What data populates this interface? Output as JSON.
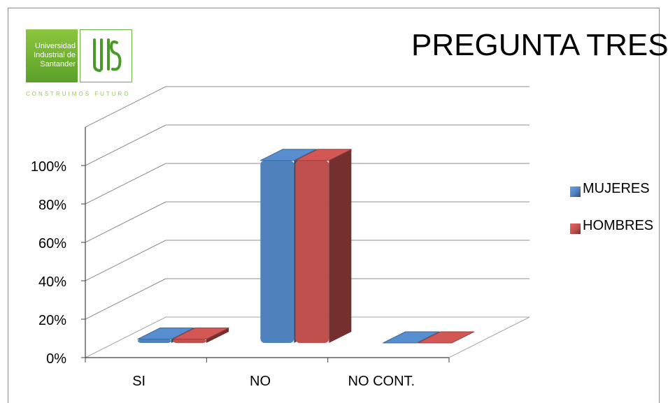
{
  "logo": {
    "name_lines": [
      "Universidad",
      "Industrial de",
      "Santander"
    ],
    "tagline": "CONSTRUIMOS FUTURO",
    "accent_color": "#6db33f"
  },
  "chart_data": {
    "type": "bar",
    "title": "PREGUNTA TRES",
    "categories": [
      "SI",
      "NO",
      "NO CONT."
    ],
    "series": [
      {
        "name": "MUJERES",
        "values": [
          2,
          95,
          0
        ],
        "color": "#4f81bd"
      },
      {
        "name": "HOMBRES",
        "values": [
          2,
          95,
          0
        ],
        "color": "#c0504d"
      }
    ],
    "y_ticks": [
      "0%",
      "20%",
      "40%",
      "60%",
      "80%",
      "100%"
    ],
    "ylim": [
      0,
      100
    ],
    "xlabel": "",
    "ylabel": "",
    "grid": true,
    "legend_position": "right",
    "three_d": true
  }
}
